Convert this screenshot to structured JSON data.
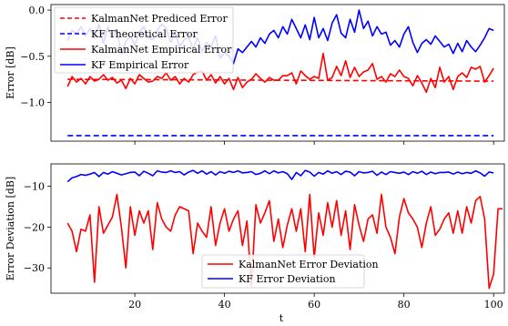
{
  "chart_data": [
    {
      "type": "line",
      "ylabel": "Error [dB]",
      "xlim": [
        1.3,
        102.4
      ],
      "ylim": [
        -1.42,
        0.06
      ],
      "yticks": [
        0.0,
        -0.5,
        -1.0
      ],
      "yticklabels": [
        "0.0",
        "−0.5",
        "−1.0"
      ],
      "xticks": [
        20,
        40,
        60,
        80,
        100
      ],
      "xticklabels": [
        "",
        "",
        "",
        "",
        ""
      ],
      "legend_position": "top-left",
      "grid": false,
      "series": [
        {
          "name": "KalmanNet Prediced Error",
          "color": "#ff0000",
          "style": "dashed",
          "x": [
            5,
            100
          ],
          "values": [
            -0.75,
            -0.77
          ]
        },
        {
          "name": "KF Theoretical Error",
          "color": "#0000ff",
          "style": "dashed",
          "x": [
            5,
            100
          ],
          "values": [
            -1.36,
            -1.36
          ]
        },
        {
          "name": "KalmanNet Empirical Error",
          "color": "#ff0000",
          "style": "solid",
          "x_start": 5,
          "values": [
            -0.83,
            -0.72,
            -0.78,
            -0.74,
            -0.8,
            -0.72,
            -0.77,
            -0.75,
            -0.7,
            -0.76,
            -0.73,
            -0.79,
            -0.76,
            -0.85,
            -0.74,
            -0.8,
            -0.7,
            -0.74,
            -0.78,
            -0.77,
            -0.72,
            -0.74,
            -0.68,
            -0.76,
            -0.72,
            -0.8,
            -0.74,
            -0.78,
            -0.7,
            -0.67,
            -0.66,
            -0.76,
            -0.7,
            -0.79,
            -0.72,
            -0.8,
            -0.74,
            -0.86,
            -0.73,
            -0.84,
            -0.78,
            -0.75,
            -0.69,
            -0.74,
            -0.78,
            -0.73,
            -0.76,
            -0.76,
            -0.71,
            -0.71,
            -0.68,
            -0.8,
            -0.66,
            -0.71,
            -0.75,
            -0.72,
            -0.74,
            -0.47,
            -0.76,
            -0.73,
            -0.61,
            -0.71,
            -0.55,
            -0.73,
            -0.62,
            -0.72,
            -0.67,
            -0.65,
            -0.58,
            -0.75,
            -0.72,
            -0.78,
            -0.69,
            -0.72,
            -0.65,
            -0.72,
            -0.74,
            -0.82,
            -0.71,
            -0.79,
            -0.89,
            -0.74,
            -0.84,
            -0.62,
            -0.78,
            -0.72,
            -0.86,
            -0.72,
            -0.68,
            -0.73,
            -0.62,
            -0.64,
            -0.61,
            -0.78,
            -0.71,
            -0.63
          ]
        },
        {
          "name": "KF Empirical Error",
          "color": "#0000ff",
          "style": "solid",
          "x_start": 5,
          "values": [
            -0.33,
            -0.22,
            -0.26,
            -0.18,
            -0.28,
            -0.2,
            -0.3,
            -0.15,
            -0.36,
            -0.18,
            -0.3,
            -0.22,
            -0.48,
            -0.34,
            -0.28,
            -0.38,
            -0.24,
            -0.18,
            -0.3,
            -0.32,
            -0.22,
            -0.15,
            -0.2,
            -0.35,
            -0.24,
            -0.4,
            -0.32,
            -0.3,
            -0.42,
            -0.3,
            -0.45,
            -0.35,
            -0.4,
            -0.28,
            -0.52,
            -0.46,
            -0.5,
            -0.58,
            -0.42,
            -0.46,
            -0.4,
            -0.34,
            -0.4,
            -0.3,
            -0.36,
            -0.26,
            -0.22,
            -0.3,
            -0.18,
            -0.26,
            -0.1,
            -0.2,
            -0.3,
            -0.16,
            -0.32,
            -0.08,
            -0.3,
            -0.2,
            -0.33,
            -0.14,
            -0.05,
            -0.25,
            -0.3,
            -0.1,
            -0.24,
            0.0,
            -0.2,
            -0.12,
            -0.28,
            -0.18,
            -0.26,
            -0.24,
            -0.38,
            -0.33,
            -0.4,
            -0.26,
            -0.18,
            -0.35,
            -0.46,
            -0.36,
            -0.32,
            -0.37,
            -0.28,
            -0.34,
            -0.4,
            -0.37,
            -0.47,
            -0.36,
            -0.45,
            -0.33,
            -0.4,
            -0.45,
            -0.38,
            -0.3,
            -0.2,
            -0.22
          ]
        }
      ]
    },
    {
      "type": "line",
      "xlabel": "t",
      "ylabel": "Error Deviation [dB]",
      "xlim": [
        1.3,
        102.4
      ],
      "ylim": [
        -36.2,
        -4.5
      ],
      "yticks": [
        -10,
        -20,
        -30
      ],
      "yticklabels": [
        "−10",
        "−20",
        "−30"
      ],
      "xticks": [
        20,
        40,
        60,
        80,
        100
      ],
      "xticklabels": [
        "20",
        "40",
        "60",
        "80",
        "100"
      ],
      "legend_position": "bottom-center",
      "grid": false,
      "series": [
        {
          "name": "KalmanNet Error Deviation",
          "color": "#ff0000",
          "style": "solid",
          "x_start": 5,
          "values": [
            -19,
            -21,
            -26,
            -20.5,
            -21,
            -17,
            -33.5,
            -15,
            -21.5,
            -19.5,
            -17.5,
            -12,
            -20,
            -30,
            -15,
            -22,
            -16,
            -19,
            -16,
            -25.5,
            -14,
            -18,
            -20,
            -21,
            -17,
            -15,
            -15.5,
            -16,
            -26.5,
            -19,
            -21,
            -22.5,
            -15,
            -24.5,
            -19,
            -15.5,
            -21,
            -18,
            -16,
            -24.5,
            -18.5,
            -34.5,
            -14.5,
            -19,
            -16.5,
            -13.5,
            -23.5,
            -18,
            -25,
            -19.5,
            -15.5,
            -21,
            -15.5,
            -26,
            -12,
            -27.5,
            -16.5,
            -22,
            -14,
            -20,
            -13.5,
            -22,
            -16,
            -25.5,
            -14.5,
            -19.5,
            -23.5,
            -18,
            -17,
            -21.5,
            -12,
            -20,
            -22.5,
            -26.5,
            -17.5,
            -13,
            -16.5,
            -18,
            -20,
            -25,
            -19,
            -15,
            -22,
            -20.5,
            -18,
            -16.5,
            -21.5,
            -16,
            -21.5,
            -15,
            -19,
            -13.5,
            -12.5,
            -18,
            -35,
            -31.5,
            -15.5,
            -15.5
          ]
        },
        {
          "name": "KF Error Deviation",
          "color": "#0000ff",
          "style": "solid",
          "x_start": 5,
          "values": [
            -8.9,
            -7.9,
            -7.6,
            -7.1,
            -7.3,
            -7.0,
            -6.6,
            -7.6,
            -6.6,
            -7.0,
            -6.4,
            -6.8,
            -7.2,
            -6.9,
            -6.6,
            -6.5,
            -7.4,
            -6.3,
            -6.8,
            -7.4,
            -6.2,
            -6.5,
            -6.6,
            -6.2,
            -6.6,
            -6.4,
            -7.2,
            -6.5,
            -6.1,
            -6.8,
            -6.2,
            -7.0,
            -6.4,
            -7.2,
            -6.4,
            -6.8,
            -6.3,
            -6.6,
            -6.2,
            -6.7,
            -6.6,
            -6.4,
            -7.1,
            -6.8,
            -6.2,
            -6.9,
            -6.2,
            -6.7,
            -6.4,
            -6.9,
            -8.3,
            -6.6,
            -7.4,
            -6.1,
            -6.5,
            -7.5,
            -6.6,
            -7.0,
            -6.2,
            -6.8,
            -6.4,
            -7.1,
            -6.3,
            -6.5,
            -7.4,
            -6.4,
            -6.7,
            -6.6,
            -6.3,
            -7.3,
            -6.5,
            -7.1,
            -6.4,
            -6.6,
            -6.8,
            -6.5,
            -7.1,
            -6.4,
            -6.8,
            -6.3,
            -7.1,
            -6.5,
            -6.9,
            -6.6,
            -6.6,
            -6.5,
            -7.0,
            -6.5,
            -6.9,
            -6.6,
            -6.8,
            -6.2,
            -6.7,
            -7.5,
            -6.5,
            -6.7
          ]
        }
      ]
    }
  ]
}
